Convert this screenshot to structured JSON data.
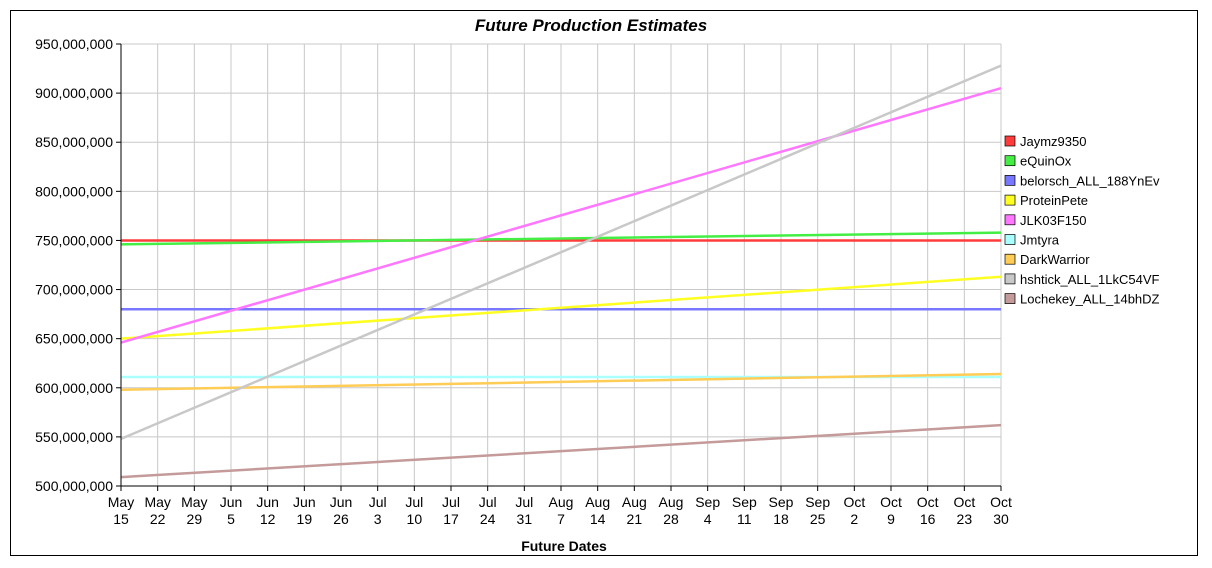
{
  "chart_data": {
    "type": "line",
    "title": "Future Production Estimates",
    "xlabel": "Future Dates",
    "ylabel": "",
    "ylim": [
      500000000,
      950000000
    ],
    "y_ticks": [
      "500,000,000",
      "550,000,000",
      "600,000,000",
      "650,000,000",
      "700,000,000",
      "750,000,000",
      "800,000,000",
      "850,000,000",
      "900,000,000",
      "950,000,000"
    ],
    "x_ticks": [
      [
        "May",
        "15"
      ],
      [
        "May",
        "22"
      ],
      [
        "May",
        "29"
      ],
      [
        "Jun",
        "5"
      ],
      [
        "Jun",
        "12"
      ],
      [
        "Jun",
        "19"
      ],
      [
        "Jun",
        "26"
      ],
      [
        "Jul",
        "3"
      ],
      [
        "Jul",
        "10"
      ],
      [
        "Jul",
        "17"
      ],
      [
        "Jul",
        "24"
      ],
      [
        "Jul",
        "31"
      ],
      [
        "Aug",
        "7"
      ],
      [
        "Aug",
        "14"
      ],
      [
        "Aug",
        "21"
      ],
      [
        "Aug",
        "28"
      ],
      [
        "Sep",
        "4"
      ],
      [
        "Sep",
        "11"
      ],
      [
        "Sep",
        "18"
      ],
      [
        "Sep",
        "25"
      ],
      [
        "Oct",
        "2"
      ],
      [
        "Oct",
        "9"
      ],
      [
        "Oct",
        "16"
      ],
      [
        "Oct",
        "23"
      ],
      [
        "Oct",
        "30"
      ]
    ],
    "grid": true,
    "legend_position": "right",
    "series": [
      {
        "name": "Jaymz9350",
        "color": "#ff3b3b",
        "start": 750000000,
        "end": 750000000
      },
      {
        "name": "eQuinOx",
        "color": "#44ee44",
        "start": 746000000,
        "end": 758000000
      },
      {
        "name": "belorsch_ALL_188YnEv",
        "color": "#7777ff",
        "start": 680000000,
        "end": 680000000
      },
      {
        "name": "ProteinPete",
        "color": "#ffff22",
        "start": 650000000,
        "end": 713000000
      },
      {
        "name": "JLK03F150",
        "color": "#ff77ff",
        "start": 646000000,
        "end": 905000000
      },
      {
        "name": "Jmtyra",
        "color": "#aaffff",
        "start": 611000000,
        "end": 611000000
      },
      {
        "name": "DarkWarrior",
        "color": "#ffcc55",
        "start": 598000000,
        "end": 614000000
      },
      {
        "name": "hshtick_ALL_1LkC54VF",
        "color": "#c8c8c8",
        "start": 548000000,
        "end": 928000000
      },
      {
        "name": "Lochekey_ALL_14bhDZ",
        "color": "#c49a9a",
        "start": 509000000,
        "end": 562000000
      }
    ]
  }
}
